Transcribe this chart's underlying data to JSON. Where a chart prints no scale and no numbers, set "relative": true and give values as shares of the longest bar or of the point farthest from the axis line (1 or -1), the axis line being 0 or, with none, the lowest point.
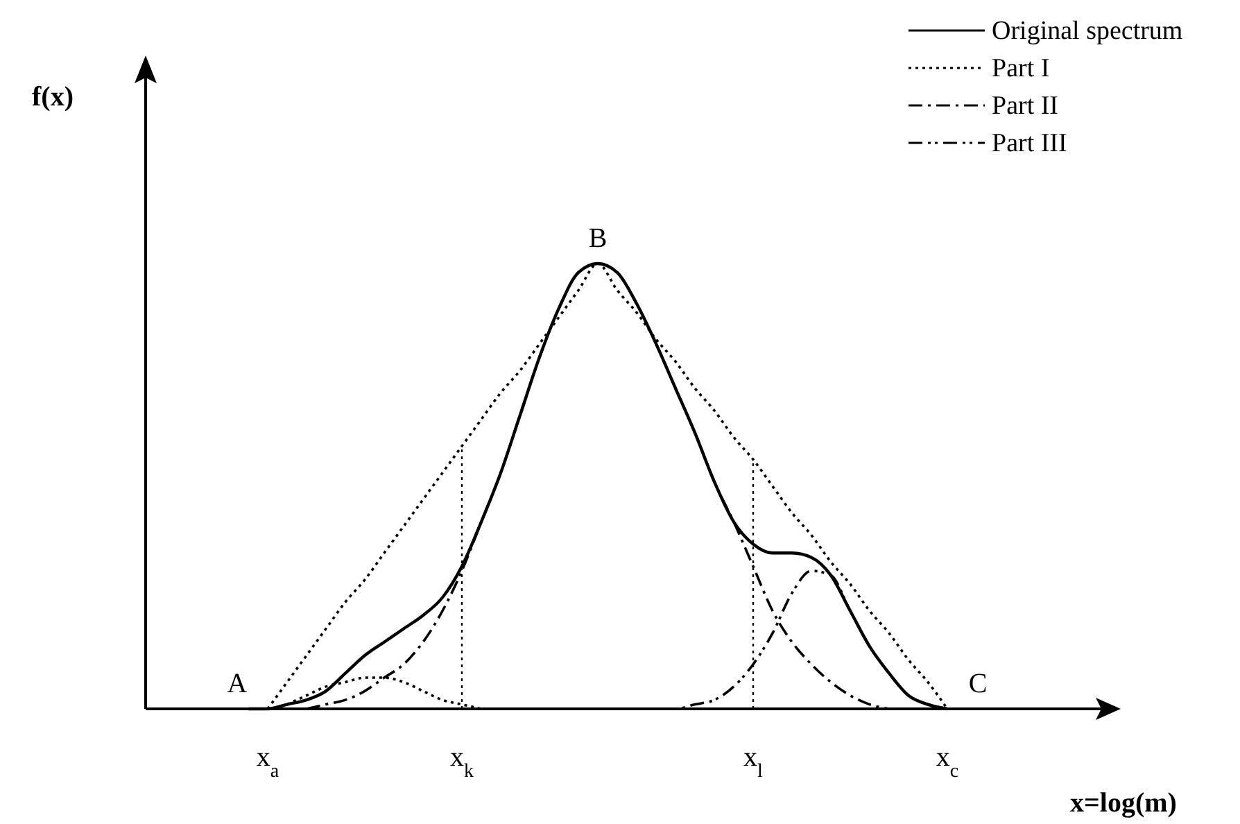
{
  "chart_data": {
    "type": "line",
    "relative": true,
    "xlabel": "x=log(m)",
    "legend": "top right",
    "categories": [
      null,
      null,
      null,
      null,
      null,
      null,
      "x$_{a}$",
      null,
      null,
      null,
      null,
      null,
      null,
      null,
      null,
      null,
      "x$_{k}$",
      null,
      null,
      null,
      null,
      null,
      null,
      null,
      null,
      null,
      null,
      null,
      null,
      null,
      null,
      "x$_{l}$",
      null,
      null,
      null,
      null,
      null,
      null,
      null,
      null,
      null,
      "x$_{c}$",
      null,
      null,
      null,
      null,
      null,
      null,
      null
    ],
    "series": [
      {
        "name": "Original spectrum",
        "color": "#000000",
        "line_style": "solid",
        "values": [
          null,
          null,
          null,
          null,
          null,
          0,
          0,
          0.01,
          0.02,
          0.04,
          0.08,
          0.12,
          0.15,
          0.18,
          0.21,
          0.25,
          0.32,
          0.42,
          0.53,
          0.66,
          0.79,
          0.9,
          0.98,
          1.0,
          0.98,
          0.91,
          0.82,
          0.72,
          0.62,
          0.51,
          0.42,
          0.37,
          0.35,
          0.35,
          0.34,
          0.3,
          0.22,
          0.14,
          0.08,
          0.03,
          0.01,
          0,
          null,
          null,
          null,
          null,
          null,
          null,
          null
        ]
      },
      {
        "name": "Part I",
        "color": "#000000",
        "line_style": "dotted",
        "values": [
          null,
          null,
          null,
          null,
          null,
          null,
          null,
          0.01,
          0.03,
          0.05,
          0.06,
          0.07,
          0.07,
          0.06,
          0.04,
          0.02,
          0.01,
          0,
          null,
          null,
          null,
          null,
          null,
          null,
          null,
          null,
          null,
          null,
          null,
          null,
          null,
          null,
          null,
          null,
          null,
          null,
          null,
          null,
          null,
          null,
          null,
          null,
          null,
          null,
          null,
          null,
          null,
          null,
          null
        ]
      },
      {
        "name": "Part II",
        "color": "#000000",
        "line_style": "dashdot",
        "values": [
          null,
          null,
          null,
          null,
          null,
          null,
          null,
          null,
          0,
          0.01,
          0.02,
          0.04,
          0.07,
          0.1,
          0.15,
          0.22,
          0.31,
          0.42,
          0.53,
          0.66,
          0.79,
          0.9,
          0.98,
          1.0,
          0.98,
          0.91,
          0.82,
          0.72,
          0.62,
          0.51,
          0.42,
          0.32,
          0.22,
          0.15,
          0.1,
          0.06,
          0.03,
          0.01,
          0,
          null,
          null,
          null,
          null,
          null,
          null,
          null,
          null,
          null,
          null
        ]
      },
      {
        "name": "Part III",
        "color": "#000000",
        "line_style": "dashdotdot",
        "values": [
          null,
          null,
          null,
          null,
          null,
          null,
          null,
          null,
          null,
          null,
          null,
          null,
          null,
          null,
          null,
          null,
          null,
          null,
          null,
          null,
          null,
          null,
          null,
          null,
          null,
          null,
          0,
          0,
          0.01,
          0.02,
          0.05,
          0.1,
          0.17,
          0.26,
          0.31,
          0.3,
          0.22,
          0.14,
          0.08,
          0.03,
          0.01,
          0,
          null,
          null,
          null,
          null,
          null,
          null,
          null
        ]
      },
      {
        "color": "#000000",
        "line_style": "dotted",
        "values": [
          null,
          null,
          null,
          null,
          null,
          null,
          0,
          0.06,
          0.12,
          0.18,
          0.24,
          0.29,
          0.35,
          0.41,
          0.47,
          0.53,
          0.59,
          0.65,
          0.71,
          0.76,
          0.82,
          0.88,
          0.94,
          1.0,
          0.94,
          0.89,
          0.83,
          0.78,
          0.72,
          0.67,
          0.61,
          0.56,
          0.5,
          0.44,
          0.39,
          0.33,
          0.28,
          0.22,
          0.17,
          0.11,
          0.06,
          0,
          null,
          null,
          null,
          null,
          null,
          null,
          null
        ]
      }
    ],
    "ref_lines": [
      {
        "axis": "x",
        "value": "x$_{k}$",
        "line_style": "dotted"
      },
      {
        "axis": "x",
        "value": "x$_{l}$",
        "line_style": "dotted"
      }
    ],
    "annotations": [
      "f(x)",
      {
        "text": "A",
        "x": "x$_{a}$",
        "y": 0
      },
      {
        "text": "B",
        "y": 1
      },
      {
        "text": "C",
        "x": "x$_{c}$",
        "y": 0
      }
    ]
  }
}
